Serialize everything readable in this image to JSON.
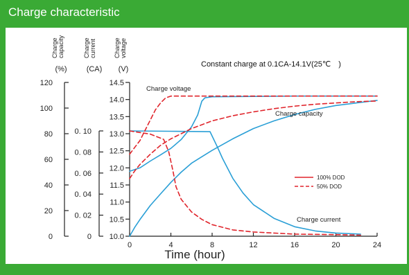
{
  "header": {
    "title": "Charge characteristic"
  },
  "chart_data": {
    "type": "line",
    "note": "Constant charge at 0.1CA-14.1V(25℃　)",
    "xlabel": "Time (hour)",
    "x_ticks": [
      "0",
      "4",
      "8",
      "12",
      "16",
      "20",
      "24"
    ],
    "xlim": [
      0,
      24
    ],
    "axes": {
      "capacity": {
        "title": [
          "Charge",
          "capacity",
          "(%)"
        ],
        "ticks": [
          "120",
          "100",
          "80",
          "60",
          "40",
          "20",
          "0"
        ],
        "range": [
          0,
          120
        ]
      },
      "current": {
        "title": [
          "Charge",
          "current",
          "(CA)"
        ],
        "ticks": [
          "0. 10",
          "0. 08",
          "0. 06",
          "0. 04",
          "0. 02",
          "0"
        ],
        "range": [
          0,
          0.1
        ]
      },
      "voltage": {
        "title": [
          "Charge",
          "voltage",
          "(V)"
        ],
        "ticks": [
          "14.5",
          "14.0",
          "13.5",
          "13.0",
          "12.5",
          "12.0",
          "11.5",
          "11.0",
          "10.5",
          "10.0"
        ],
        "range": [
          10.0,
          14.5
        ]
      }
    },
    "labels": {
      "voltage": "Charge voltage",
      "capacity": "Charge capacity",
      "current": "Charge current"
    },
    "legend": [
      {
        "name": "100% DOD",
        "style": "solid"
      },
      {
        "name": "50% DOD",
        "style": "dashed"
      }
    ],
    "series": [
      {
        "group": "100% DOD",
        "quantity": "voltage",
        "axis": "voltage",
        "style": "solid",
        "points": [
          [
            0,
            11.9
          ],
          [
            1,
            12.0
          ],
          [
            2,
            12.2
          ],
          [
            3,
            12.38
          ],
          [
            4,
            12.57
          ],
          [
            5,
            12.83
          ],
          [
            6,
            13.2
          ],
          [
            6.6,
            13.55
          ],
          [
            7,
            13.95
          ],
          [
            7.3,
            14.05
          ],
          [
            8,
            14.08
          ],
          [
            12,
            14.09
          ],
          [
            16,
            14.1
          ],
          [
            20,
            14.1
          ],
          [
            24,
            14.1
          ]
        ]
      },
      {
        "group": "100% DOD",
        "quantity": "capacity",
        "axis": "capacity",
        "style": "solid",
        "points": [
          [
            0,
            0
          ],
          [
            0.5,
            7
          ],
          [
            1,
            13
          ],
          [
            2,
            24
          ],
          [
            3,
            33
          ],
          [
            4,
            42
          ],
          [
            5,
            50
          ],
          [
            6,
            57
          ],
          [
            7,
            62
          ],
          [
            8,
            67
          ],
          [
            10,
            76
          ],
          [
            12,
            84
          ],
          [
            14,
            90
          ],
          [
            16,
            95
          ],
          [
            18,
            99
          ],
          [
            20,
            102
          ],
          [
            22,
            104
          ],
          [
            24,
            106
          ]
        ]
      },
      {
        "group": "100% DOD",
        "quantity": "current",
        "axis": "current",
        "style": "solid",
        "points": [
          [
            0,
            0.1
          ],
          [
            4,
            0.0997
          ],
          [
            7.8,
            0.0993
          ],
          [
            8.5,
            0.085
          ],
          [
            9,
            0.074
          ],
          [
            10,
            0.055
          ],
          [
            11,
            0.041
          ],
          [
            12,
            0.03
          ],
          [
            14,
            0.017
          ],
          [
            16,
            0.009
          ],
          [
            18,
            0.005
          ],
          [
            20,
            0.003
          ],
          [
            22.4,
            0.002
          ]
        ]
      },
      {
        "group": "50% DOD",
        "quantity": "voltage",
        "axis": "voltage",
        "style": "dashed",
        "points": [
          [
            0,
            12.4
          ],
          [
            0.5,
            12.6
          ],
          [
            1,
            12.8
          ],
          [
            1.5,
            13.1
          ],
          [
            2,
            13.4
          ],
          [
            2.5,
            13.7
          ],
          [
            3,
            13.9
          ],
          [
            3.5,
            14.05
          ],
          [
            4,
            14.1
          ],
          [
            8,
            14.1
          ],
          [
            12,
            14.1
          ],
          [
            16,
            14.1
          ],
          [
            20,
            14.1
          ],
          [
            24,
            14.1
          ]
        ]
      },
      {
        "group": "50% DOD",
        "quantity": "capacity",
        "axis": "capacity",
        "style": "dashed",
        "points": [
          [
            0,
            45
          ],
          [
            0.5,
            51
          ],
          [
            1,
            56
          ],
          [
            2,
            64
          ],
          [
            3,
            71
          ],
          [
            4,
            76
          ],
          [
            5,
            80
          ],
          [
            6,
            84
          ],
          [
            7,
            87
          ],
          [
            8,
            90
          ],
          [
            10,
            94
          ],
          [
            12,
            97
          ],
          [
            14,
            99.5
          ],
          [
            16,
            101.5
          ],
          [
            18,
            103
          ],
          [
            20,
            104
          ],
          [
            22,
            105
          ],
          [
            24,
            105.5
          ]
        ]
      },
      {
        "group": "50% DOD",
        "quantity": "current",
        "axis": "current",
        "style": "dashed",
        "points": [
          [
            0,
            0.1
          ],
          [
            2,
            0.097
          ],
          [
            3.3,
            0.092
          ],
          [
            3.8,
            0.08
          ],
          [
            4.2,
            0.062
          ],
          [
            4.5,
            0.047
          ],
          [
            5,
            0.035
          ],
          [
            6,
            0.023
          ],
          [
            7,
            0.016
          ],
          [
            8,
            0.011
          ],
          [
            10,
            0.006
          ],
          [
            12,
            0.004
          ],
          [
            16,
            0.002
          ],
          [
            20,
            0.0015
          ],
          [
            22.4,
            0.001
          ]
        ]
      }
    ]
  }
}
